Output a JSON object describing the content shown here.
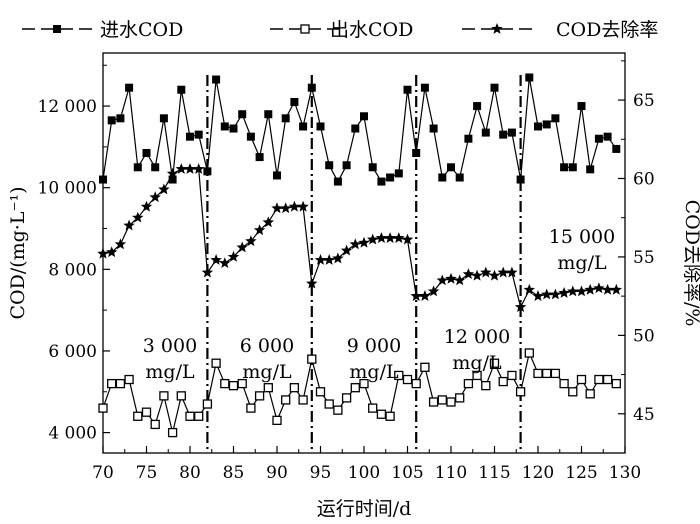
{
  "chart_data": {
    "type": "line",
    "xlabel": "运行时间/d",
    "ylabel": "COD/(mg·L⁻¹)",
    "y2label": "COD去除率/%",
    "xlim": [
      70,
      130
    ],
    "ylim": [
      3500,
      13300
    ],
    "y2lim": [
      42.5,
      68
    ],
    "xticks": [
      "70",
      "75",
      "80",
      "85",
      "90",
      "95",
      "100",
      "105",
      "110",
      "115",
      "120",
      "125",
      "130"
    ],
    "yticks": [
      "4 000",
      "6 000",
      "8 000",
      "10 000",
      "12 000"
    ],
    "y2ticks": [
      "45",
      "50",
      "55",
      "60",
      "65"
    ],
    "legend": {
      "placement": "top",
      "entries": [
        "进水COD",
        "出水COD",
        "COD去除率"
      ]
    },
    "grid": false,
    "phase_dividers": [
      82,
      94,
      106,
      118
    ],
    "phase_labels": [
      {
        "line1": "3 000",
        "line2": "mg/L"
      },
      {
        "line1": "6 000",
        "line2": "mg/L"
      },
      {
        "line1": "9 000",
        "line2": "mg/L"
      },
      {
        "line1": "12 000",
        "line2": "mg/L"
      },
      {
        "line1": "15 000",
        "line2": "mg/L"
      }
    ],
    "series": [
      {
        "name": "进水COD",
        "axis": "left",
        "marker": "filled-square",
        "x": [
          70,
          71,
          72,
          73,
          74,
          75,
          76,
          77,
          78,
          79,
          80,
          81,
          82,
          83,
          84,
          85,
          86,
          87,
          88,
          89,
          90,
          91,
          92,
          93,
          94,
          95,
          96,
          97,
          98,
          99,
          100,
          101,
          102,
          103,
          104,
          105,
          106,
          107,
          108,
          109,
          110,
          111,
          112,
          113,
          114,
          115,
          116,
          117,
          118,
          119,
          120,
          121,
          122,
          123,
          124,
          125,
          126,
          127,
          128,
          129
        ],
        "values": [
          10200,
          11650,
          11700,
          12450,
          10500,
          10850,
          10500,
          11700,
          10200,
          12400,
          11250,
          11300,
          10400,
          12650,
          11500,
          11450,
          11800,
          11250,
          10750,
          11800,
          10300,
          11700,
          12100,
          11500,
          12450,
          11500,
          10550,
          10150,
          10550,
          11450,
          11750,
          10500,
          10150,
          10250,
          10350,
          12400,
          10850,
          12450,
          11450,
          10250,
          10500,
          10250,
          11200,
          12000,
          11350,
          12450,
          11300,
          11350,
          10200,
          12700,
          11500,
          11550,
          11700,
          10500,
          10500,
          12000,
          10450,
          11200,
          11250,
          10950
        ]
      },
      {
        "name": "出水COD",
        "axis": "left",
        "marker": "open-square",
        "x": [
          70,
          71,
          72,
          73,
          74,
          75,
          76,
          77,
          78,
          79,
          80,
          81,
          82,
          83,
          84,
          85,
          86,
          87,
          88,
          89,
          90,
          91,
          92,
          93,
          94,
          95,
          96,
          97,
          98,
          99,
          100,
          101,
          102,
          103,
          104,
          105,
          106,
          107,
          108,
          109,
          110,
          111,
          112,
          113,
          114,
          115,
          116,
          117,
          118,
          119,
          120,
          121,
          122,
          123,
          124,
          125,
          126,
          127,
          128,
          129
        ],
        "values": [
          4600,
          5200,
          5200,
          5300,
          4400,
          4500,
          4200,
          4900,
          4000,
          4900,
          4400,
          4400,
          4700,
          5700,
          5200,
          5150,
          5200,
          4600,
          4900,
          5100,
          4300,
          4800,
          5100,
          4800,
          5800,
          5000,
          4700,
          4550,
          4850,
          5100,
          5200,
          4600,
          4450,
          4400,
          5400,
          5300,
          5200,
          5600,
          4750,
          4800,
          4750,
          4850,
          5200,
          5400,
          5150,
          5700,
          5250,
          5400,
          5000,
          5950,
          5450,
          5450,
          5450,
          5200,
          5000,
          5300,
          4950,
          5300,
          5300,
          5200
        ]
      },
      {
        "name": "COD去除率",
        "axis": "right",
        "marker": "star",
        "x": [
          70,
          71,
          72,
          73,
          74,
          75,
          76,
          77,
          78,
          79,
          80,
          81,
          82,
          83,
          84,
          85,
          86,
          87,
          88,
          89,
          90,
          91,
          92,
          93,
          94,
          95,
          96,
          97,
          98,
          99,
          100,
          101,
          102,
          103,
          104,
          105,
          106,
          107,
          108,
          109,
          110,
          111,
          112,
          113,
          114,
          115,
          116,
          117,
          118,
          119,
          120,
          121,
          122,
          123,
          124,
          125,
          126,
          127,
          128,
          129
        ],
        "values": [
          55.2,
          55.3,
          55.8,
          57.0,
          57.5,
          58.2,
          58.8,
          59.3,
          60.3,
          60.6,
          60.6,
          60.6,
          54.0,
          54.8,
          54.6,
          55.0,
          55.6,
          56.0,
          56.7,
          57.2,
          58.1,
          58.1,
          58.2,
          58.2,
          53.3,
          54.8,
          54.8,
          54.9,
          55.4,
          55.8,
          55.9,
          56.1,
          56.2,
          56.2,
          56.2,
          56.1,
          52.5,
          52.5,
          52.8,
          53.5,
          53.6,
          53.5,
          53.9,
          53.8,
          54.0,
          53.8,
          54.0,
          54.0,
          51.8,
          52.9,
          52.5,
          52.6,
          52.6,
          52.7,
          52.8,
          52.8,
          52.9,
          53.0,
          52.9,
          52.9
        ]
      }
    ]
  }
}
